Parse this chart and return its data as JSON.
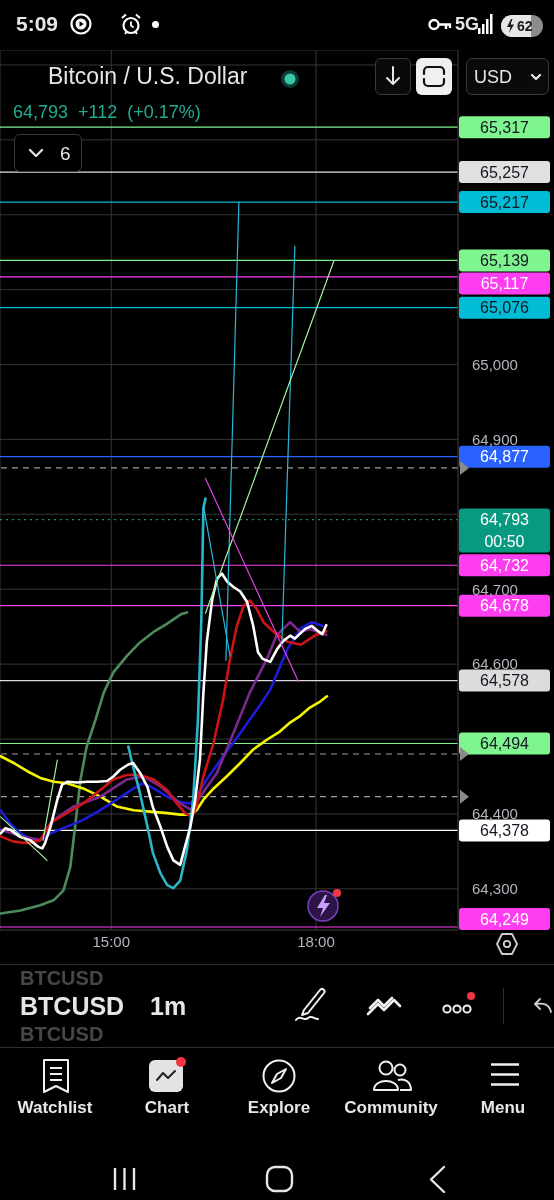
{
  "chart_data": {
    "type": "line",
    "title": "Bitcoin / U.S. Dollar",
    "subtitle": "64,793 +112 (+0.17%)",
    "annotations": [
      "5:09",
      "5G",
      "62",
      "6",
      "USD",
      "BTCUSD",
      "BTCUSD",
      "BTCUSD",
      "1m",
      "Watchlist",
      "Chart",
      "Explore",
      "Community",
      "Menu"
    ],
    "xlim": [
      13.37,
      20.08
    ],
    "xticks": [
      {
        "value": 15,
        "label": "15:00"
      },
      {
        "value": 18,
        "label": "18:00"
      }
    ],
    "ylim": [
      64245,
      65420
    ],
    "yticks": [
      {
        "value": 64300,
        "label": "64,300"
      },
      {
        "value": 64400,
        "label": "64,400"
      },
      {
        "value": 64500,
        "label": null
      },
      {
        "value": 64600,
        "label": "64,600"
      },
      {
        "value": 64700,
        "label": "64,700"
      },
      {
        "value": 64800,
        "label": null
      },
      {
        "value": 64900,
        "label": "64,900"
      },
      {
        "value": 65000,
        "label": "65,000"
      },
      {
        "value": 65100,
        "label": null
      },
      {
        "value": 65200,
        "label": null
      },
      {
        "value": 65300,
        "label": null
      },
      {
        "value": 65400,
        "label": null
      }
    ],
    "grid": true,
    "line_style": "solid",
    "series": [
      {
        "color": "#4c8c5c",
        "x": [
          13.38,
          13.67,
          13.96,
          14.16,
          14.3,
          14.4,
          14.47,
          14.55,
          14.64,
          14.77,
          14.89,
          15.03,
          15.23,
          15.42,
          15.62,
          15.82,
          16.03,
          16.11
        ],
        "values": [
          64267,
          64271,
          64278,
          64285,
          64298,
          64329,
          64383,
          64446,
          64490,
          64526,
          64562,
          64589,
          64611,
          64629,
          64643,
          64654,
          64667,
          64669
        ]
      },
      {
        "color": "#f5f500",
        "x": [
          13.38,
          13.57,
          13.77,
          13.96,
          14.16,
          14.35,
          14.59,
          14.84,
          15.08,
          15.33,
          15.57,
          15.82,
          16.01,
          16.16,
          16.25,
          16.35,
          16.5,
          16.69,
          16.89,
          17.08,
          17.28,
          17.47,
          17.62,
          17.77,
          17.91,
          18.06,
          18.16
        ],
        "values": [
          64477,
          64468,
          64457,
          64448,
          64443,
          64441,
          64434,
          64423,
          64410,
          64405,
          64403,
          64401,
          64399,
          64399,
          64405,
          64419,
          64434,
          64450,
          64468,
          64486,
          64499,
          64510,
          64522,
          64531,
          64542,
          64550,
          64557
        ]
      },
      {
        "color": "#1c1cd8",
        "x": [
          13.38,
          13.52,
          13.67,
          13.81,
          13.96,
          14.11,
          14.35,
          14.59,
          14.84,
          15.08,
          15.33,
          15.47,
          15.62,
          15.82,
          16.01,
          16.16,
          16.25,
          16.4,
          16.6,
          16.79,
          17.03,
          17.18,
          17.33,
          17.58,
          17.78,
          17.94,
          18.1
        ],
        "values": [
          64405,
          64387,
          64374,
          64367,
          64365,
          64374,
          64383,
          64392,
          64405,
          64419,
          64434,
          64441,
          64434,
          64423,
          64416,
          64414,
          64423,
          64446,
          64472,
          64495,
          64526,
          64545,
          64566,
          64620,
          64648,
          64656,
          64651
        ]
      },
      {
        "color": "#7a2a8c",
        "x": [
          13.38,
          13.67,
          13.96,
          14.16,
          14.45,
          14.84,
          15.23,
          15.47,
          15.72,
          16.01,
          16.18,
          16.3,
          16.55,
          16.79,
          17.03,
          17.28,
          17.42,
          17.62,
          17.77,
          17.91,
          18.15
        ],
        "values": [
          64379,
          64370,
          64365,
          64392,
          64410,
          64423,
          64446,
          64450,
          64437,
          64414,
          64405,
          64423,
          64455,
          64508,
          64562,
          64607,
          64638,
          64656,
          64643,
          64647,
          64639
        ]
      },
      {
        "color": "#cc1414",
        "x": [
          13.38,
          13.57,
          13.77,
          13.96,
          14.11,
          14.35,
          14.59,
          14.84,
          15.03,
          15.23,
          15.42,
          15.62,
          15.82,
          15.96,
          16.08,
          16.18,
          16.25,
          16.35,
          16.5,
          16.64,
          16.74,
          16.84,
          16.94,
          17.03,
          17.13,
          17.23,
          17.38,
          17.58,
          17.78,
          18.0,
          18.15
        ],
        "values": [
          64370,
          64363,
          64361,
          64365,
          64388,
          64401,
          64414,
          64432,
          64446,
          64452,
          64452,
          64446,
          64432,
          64414,
          64401,
          64396,
          64410,
          64450,
          64495,
          64553,
          64607,
          64651,
          64678,
          64685,
          64674,
          64656,
          64643,
          64630,
          64626,
          64639,
          64644
        ]
      },
      {
        "color": "#2bb5c9",
        "x": [
          15.25,
          15.32,
          15.42,
          15.53,
          15.61,
          15.72,
          15.82,
          15.91,
          16.01,
          16.11,
          16.2,
          16.27,
          16.32,
          16.35,
          16.38
        ],
        "values": [
          64490,
          64463,
          64428,
          64383,
          64348,
          64321,
          64305,
          64301,
          64311,
          64352,
          64419,
          64526,
          64660,
          64808,
          64821
        ]
      },
      {
        "color": "#ffffff",
        "x": [
          13.38,
          13.45,
          13.52,
          13.67,
          13.81,
          13.93,
          13.99,
          14.03,
          14.11,
          14.21,
          14.28,
          14.36,
          14.5,
          14.65,
          14.8,
          14.94,
          15.03,
          15.13,
          15.25,
          15.32,
          15.42,
          15.53,
          15.61,
          15.72,
          15.82,
          15.91,
          16.01,
          16.08,
          16.16,
          16.23,
          16.3,
          16.35,
          16.4,
          16.48,
          16.55,
          16.62,
          16.7,
          16.79,
          16.89,
          16.99,
          17.08,
          17.15,
          17.22,
          17.33,
          17.43,
          17.52,
          17.62,
          17.69,
          17.84,
          17.94,
          18.03,
          18.09,
          18.15
        ],
        "values": [
          64374,
          64381,
          64379,
          64369,
          64365,
          64356,
          64354,
          64361,
          64383,
          64419,
          64439,
          64443,
          64442,
          64443,
          64443,
          64444,
          64450,
          64459,
          64466,
          64468,
          64455,
          64436,
          64409,
          64383,
          64356,
          64338,
          64332,
          64356,
          64383,
          64419,
          64473,
          64562,
          64630,
          64687,
          64714,
          64721,
          64710,
          64703,
          64697,
          64683,
          64651,
          64616,
          64607,
          64603,
          64620,
          64631,
          64638,
          64634,
          64647,
          64651,
          64644,
          64640,
          64652
        ]
      },
      {
        "color": "#29b6d8",
        "x": [
          16.68,
          16.87
        ],
        "values": [
          64605,
          65217
        ]
      },
      {
        "color": "#29b6d8",
        "x": [
          17.5,
          17.69
        ],
        "values": [
          64630,
          65158
        ]
      },
      {
        "color": "#29b6d8",
        "x": [
          16.35,
          16.74
        ],
        "values": [
          64812,
          64611
        ]
      },
      {
        "color": "#a5f0a0",
        "x": [
          16.38,
          18.26
        ],
        "values": [
          64668,
          65138
        ]
      },
      {
        "color": "#a5f0a0",
        "x": [
          14.0,
          14.21
        ],
        "values": [
          64365,
          64472
        ]
      },
      {
        "color": "#a5f0a0",
        "x": [
          13.38,
          14.06
        ],
        "values": [
          64396,
          64338
        ]
      },
      {
        "color": "#e040e0",
        "x": [
          16.38,
          17.74
        ],
        "values": [
          64848,
          64577
        ]
      }
    ],
    "ref_lines": [
      {
        "axis": "y",
        "value": 65317,
        "label": "65,317",
        "color": "#7ef58f"
      },
      {
        "axis": "y",
        "value": 65257,
        "label": "65,257",
        "color": "#e0e0e0"
      },
      {
        "axis": "y",
        "value": 65217,
        "label": "65,217",
        "color": "#00bcd4"
      },
      {
        "axis": "y",
        "value": 65139,
        "label": "65,139",
        "color": "#7ef58f"
      },
      {
        "axis": "y",
        "value": 65117,
        "label": "65,117",
        "color": "#ff3df0"
      },
      {
        "axis": "y",
        "value": 65076,
        "label": "65,076",
        "color": "#00bcd4"
      },
      {
        "axis": "y",
        "value": 64877,
        "label": "64,877",
        "color": "#2962ff"
      },
      {
        "axis": "y",
        "value": 64862,
        "color": "#9e9e9e",
        "line_style": "dashed"
      },
      {
        "axis": "y",
        "value": 64793,
        "label": "64,793\n00:50",
        "color": "#089981",
        "line_style": "dotted"
      },
      {
        "axis": "y",
        "value": 64732,
        "label": "64,732",
        "color": "#ff3df0"
      },
      {
        "axis": "y",
        "value": 64678,
        "label": "64,678",
        "color": "#ff3df0"
      },
      {
        "axis": "y",
        "value": 64578,
        "label": "64,578",
        "color": "#dcdcdc"
      },
      {
        "axis": "y",
        "value": 64494,
        "label": "64,494",
        "color": "#7ef58f"
      },
      {
        "axis": "y",
        "value": 64480,
        "color": "#9e9e9e",
        "line_style": "dashed"
      },
      {
        "axis": "y",
        "value": 64423,
        "color": "#9e9e9e",
        "line_style": "dashed"
      },
      {
        "axis": "y",
        "value": 64378,
        "label": "64,378",
        "color": "#ffffff"
      },
      {
        "axis": "y",
        "value": 64249,
        "label": "64,249",
        "color": "#ff3df0"
      }
    ]
  }
}
